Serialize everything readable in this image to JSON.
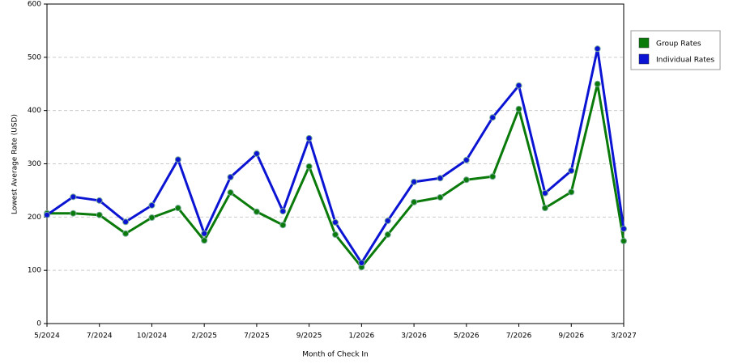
{
  "chart_data": {
    "type": "line",
    "x_label": "Month of Check In",
    "y_label": "Lowest Average Rate (USD)",
    "categories": [
      "5/2024",
      null,
      "7/2024",
      null,
      "10/2024",
      null,
      "2/2025",
      null,
      "7/2025",
      null,
      "9/2025",
      null,
      "1/2026",
      null,
      "3/2026",
      null,
      "5/2026",
      null,
      "7/2026",
      null,
      "9/2026",
      null,
      "3/2027"
    ],
    "series": [
      {
        "name": "Group Rates",
        "color": "#0a7a0a",
        "values": [
          207,
          207,
          204,
          169,
          199,
          217,
          156,
          246,
          210,
          185,
          295,
          167,
          106,
          167,
          228,
          237,
          270,
          276,
          403,
          217,
          247,
          450,
          155
        ]
      },
      {
        "name": "Individual Rates",
        "color": "#0a14d2",
        "values": [
          204,
          238,
          231,
          191,
          222,
          308,
          169,
          275,
          319,
          211,
          348,
          190,
          114,
          193,
          266,
          273,
          307,
          387,
          447,
          245,
          287,
          516,
          178
        ]
      }
    ],
    "ylim": [
      0,
      600
    ],
    "yticks": [
      0,
      100,
      200,
      300,
      400,
      500,
      600
    ],
    "grid": true
  }
}
